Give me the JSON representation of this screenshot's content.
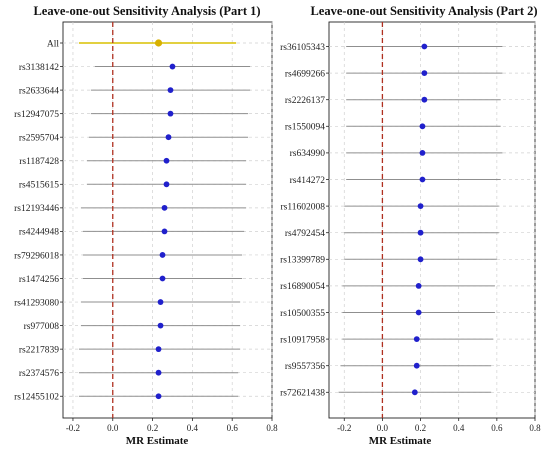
{
  "chart_data": [
    {
      "type": "scatter",
      "subtype": "forest",
      "title": "Leave-one-out Sensitivity Analysis (Part 1)",
      "xlabel": "MR Estimate",
      "xlim": [
        -0.25,
        0.8
      ],
      "xticks": [
        -0.2,
        0.0,
        0.2,
        0.4,
        0.6,
        0.8
      ],
      "xtick_labels": [
        "-0.2",
        "0.0",
        "0.2",
        "0.4",
        "0.6",
        "0.8"
      ],
      "reference_line": 0.0,
      "grid": true,
      "highlight_color": "#d8b000",
      "point_color": "#2020cc",
      "snps": [
        {
          "label": "All",
          "estimate": 0.23,
          "lower": -0.17,
          "upper": 0.62
        },
        {
          "label": "rs3138142",
          "estimate": 0.3,
          "lower": -0.09,
          "upper": 0.69
        },
        {
          "label": "rs2633644",
          "estimate": 0.29,
          "lower": -0.11,
          "upper": 0.69
        },
        {
          "label": "rs12947075",
          "estimate": 0.29,
          "lower": -0.11,
          "upper": 0.68
        },
        {
          "label": "rs2595704",
          "estimate": 0.28,
          "lower": -0.12,
          "upper": 0.68
        },
        {
          "label": "rs1187428",
          "estimate": 0.27,
          "lower": -0.13,
          "upper": 0.67
        },
        {
          "label": "rs4515615",
          "estimate": 0.27,
          "lower": -0.13,
          "upper": 0.67
        },
        {
          "label": "rs12193446",
          "estimate": 0.26,
          "lower": -0.16,
          "upper": 0.67
        },
        {
          "label": "rs4244948",
          "estimate": 0.26,
          "lower": -0.15,
          "upper": 0.66
        },
        {
          "label": "rs79296018",
          "estimate": 0.25,
          "lower": -0.15,
          "upper": 0.65
        },
        {
          "label": "rs1474256",
          "estimate": 0.25,
          "lower": -0.15,
          "upper": 0.65
        },
        {
          "label": "rs41293080",
          "estimate": 0.24,
          "lower": -0.16,
          "upper": 0.64
        },
        {
          "label": "rs977008",
          "estimate": 0.24,
          "lower": -0.16,
          "upper": 0.64
        },
        {
          "label": "rs2217839",
          "estimate": 0.23,
          "lower": -0.17,
          "upper": 0.64
        },
        {
          "label": "rs2374576",
          "estimate": 0.23,
          "lower": -0.17,
          "upper": 0.63
        },
        {
          "label": "rs12455102",
          "estimate": 0.23,
          "lower": -0.17,
          "upper": 0.63
        }
      ]
    },
    {
      "type": "scatter",
      "subtype": "forest",
      "title": "Leave-one-out Sensitivity Analysis (Part 2)",
      "xlabel": "MR Estimate",
      "xlim": [
        -0.28,
        0.8
      ],
      "xticks": [
        -0.2,
        0.0,
        0.2,
        0.4,
        0.6,
        0.8
      ],
      "xtick_labels": [
        "-0.2",
        "0.0",
        "0.2",
        "0.4",
        "0.6",
        "0.8"
      ],
      "reference_line": 0.0,
      "grid": true,
      "point_color": "#2020cc",
      "snps": [
        {
          "label": "rs36105343",
          "estimate": 0.22,
          "lower": -0.19,
          "upper": 0.63
        },
        {
          "label": "rs4699266",
          "estimate": 0.22,
          "lower": -0.19,
          "upper": 0.63
        },
        {
          "label": "rs2226137",
          "estimate": 0.22,
          "lower": -0.19,
          "upper": 0.62
        },
        {
          "label": "rs1550094",
          "estimate": 0.21,
          "lower": -0.19,
          "upper": 0.62
        },
        {
          "label": "rs634990",
          "estimate": 0.21,
          "lower": -0.19,
          "upper": 0.63
        },
        {
          "label": "rs414272",
          "estimate": 0.21,
          "lower": -0.19,
          "upper": 0.62
        },
        {
          "label": "rs11602008",
          "estimate": 0.2,
          "lower": -0.2,
          "upper": 0.61
        },
        {
          "label": "rs4792454",
          "estimate": 0.2,
          "lower": -0.2,
          "upper": 0.61
        },
        {
          "label": "rs13399789",
          "estimate": 0.2,
          "lower": -0.2,
          "upper": 0.6
        },
        {
          "label": "rs16890054",
          "estimate": 0.19,
          "lower": -0.21,
          "upper": 0.59
        },
        {
          "label": "rs10500355",
          "estimate": 0.19,
          "lower": -0.21,
          "upper": 0.59
        },
        {
          "label": "rs10917958",
          "estimate": 0.18,
          "lower": -0.21,
          "upper": 0.58
        },
        {
          "label": "rs9557356",
          "estimate": 0.18,
          "lower": -0.22,
          "upper": 0.57
        },
        {
          "label": "rs72621438",
          "estimate": 0.17,
          "lower": -0.23,
          "upper": 0.57
        }
      ]
    }
  ]
}
